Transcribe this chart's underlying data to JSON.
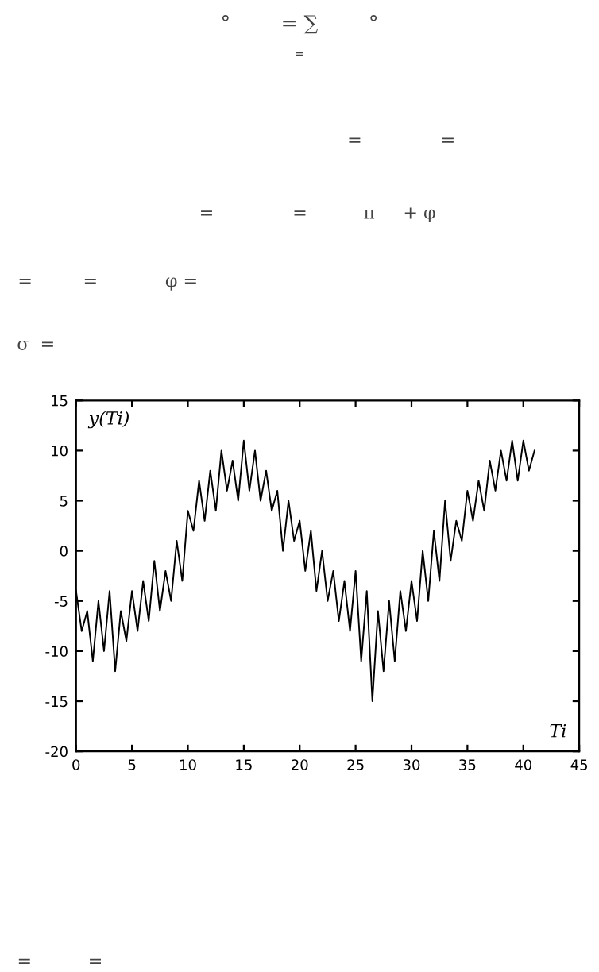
{
  "chart_data": {
    "type": "line",
    "xlabel": "Ti",
    "ylabel": "y(Ti)",
    "x": [
      0,
      0.5,
      1,
      1.5,
      2,
      2.5,
      3,
      3.5,
      4,
      4.5,
      5,
      5.5,
      6,
      6.5,
      7,
      7.5,
      8,
      8.5,
      9,
      9.5,
      10,
      10.5,
      11,
      11.5,
      12,
      12.5,
      13,
      13.5,
      14,
      14.5,
      15,
      15.5,
      16,
      16.5,
      17,
      17.5,
      18,
      18.5,
      19,
      19.5,
      20,
      20.5,
      21,
      21.5,
      22,
      22.5,
      23,
      23.5,
      24,
      24.5,
      25,
      25.5,
      26,
      26.5,
      27,
      27.5,
      28,
      28.5,
      29,
      29.5,
      30,
      30.5,
      31,
      31.5,
      32,
      32.5,
      33,
      33.5,
      34,
      34.5,
      35,
      35.5,
      36,
      36.5,
      37,
      37.5,
      38,
      38.5,
      39,
      39.5,
      40,
      40.5,
      41
    ],
    "series": [
      {
        "color": "#000000",
        "values": [
          -4,
          -8,
          -6,
          -11,
          -5,
          -10,
          -4,
          -12,
          -6,
          -9,
          -4,
          -8,
          -3,
          -7,
          -1,
          -6,
          -2,
          -5,
          1,
          -3,
          4,
          2,
          7,
          3,
          8,
          4,
          10,
          6,
          9,
          5,
          11,
          6,
          10,
          5,
          8,
          4,
          6,
          0,
          5,
          1,
          3,
          -2,
          2,
          -4,
          0,
          -5,
          -2,
          -7,
          -3,
          -8,
          -2,
          -11,
          -4,
          -15,
          -6,
          -12,
          -5,
          -11,
          -4,
          -8,
          -3,
          -7,
          0,
          -5,
          2,
          -3,
          5,
          -1,
          3,
          1,
          6,
          3,
          7,
          4,
          9,
          6,
          10,
          7,
          11,
          7,
          11,
          8,
          10
        ]
      }
    ],
    "xlim": [
      0,
      45
    ],
    "xticks": [
      0,
      5,
      10,
      15,
      20,
      25,
      30,
      35,
      40,
      45
    ],
    "ylim": [
      -20,
      15
    ],
    "yticks": [
      -20,
      -15,
      -10,
      -5,
      0,
      5,
      10,
      15
    ],
    "grid": false,
    "legend": false,
    "marker": "none",
    "line_style": "solid",
    "annotations": [
      "°        = ∑        °",
      "=",
      "=              =",
      "=              =          π     + φ",
      "=         =            φ =",
      "σ  =",
      "=          ="
    ]
  }
}
